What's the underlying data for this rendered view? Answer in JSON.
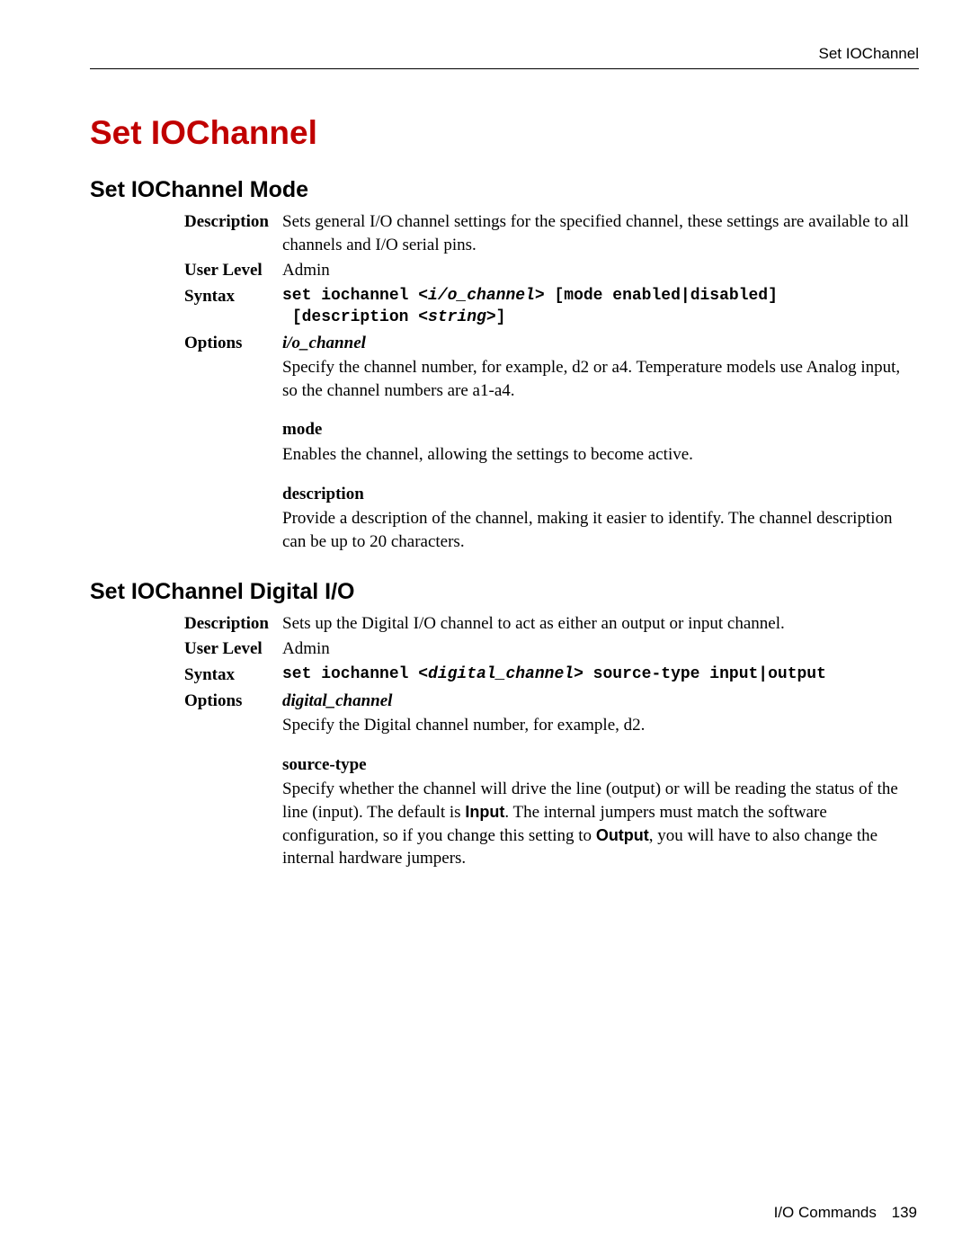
{
  "header": {
    "right": "Set IOChannel"
  },
  "title": "Set IOChannel",
  "footer": {
    "label": "I/O Commands",
    "page": "139"
  },
  "sections": {
    "mode": {
      "heading": "Set IOChannel Mode",
      "description_label": "Description",
      "description_text": "Sets general I/O channel settings for the specified channel, these settings are available to all channels and I/O serial pins.",
      "userlevel_label": "User Level",
      "userlevel_value": "Admin",
      "syntax_label": "Syntax",
      "syntax_pre": "set iochannel <",
      "syntax_arg1": "i/o_channel",
      "syntax_mid1": "> [mode enabled|disabled]",
      "syntax_line2a": " [description <",
      "syntax_arg2": "string",
      "syntax_line2b": ">]",
      "options_label": "Options",
      "opt1_title": "i/o_channel",
      "opt1_text": "Specify the channel number, for example, d2 or a4. Temperature models use Analog input, so the channel numbers are a1-a4.",
      "opt2_title": "mode",
      "opt2_text": "Enables the channel, allowing the settings to become active.",
      "opt3_title": "description",
      "opt3_text": "Provide a description of the channel, making it easier to identify. The channel description can be up to 20 characters."
    },
    "digital": {
      "heading": "Set IOChannel Digital I/O",
      "description_label": "Description",
      "description_text": "Sets up the Digital I/O channel to act as either an output or input channel.",
      "userlevel_label": "User Level",
      "userlevel_value": "Admin",
      "syntax_label": "Syntax",
      "syntax_pre": "set iochannel <",
      "syntax_arg1": "digital_channel",
      "syntax_post": "> source-type input|output",
      "options_label": "Options",
      "opt1_title": "digital_channel",
      "opt1_text": "Specify the Digital channel number, for example, d2.",
      "opt2_title": "source-type",
      "opt2_text_a": "Specify whether the channel will drive the line (output) or will be reading the status of the line (input). The default is ",
      "opt2_bold1": "Input",
      "opt2_text_b": ". The internal jumpers must match the software configuration, so if you change this setting to ",
      "opt2_bold2": "Output",
      "opt2_text_c": ", you will have to also change the internal hardware jumpers."
    }
  }
}
